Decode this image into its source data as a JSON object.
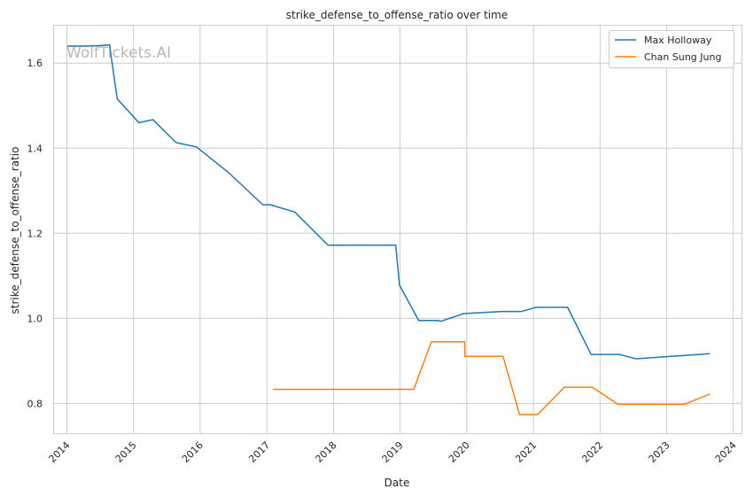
{
  "chart_data": {
    "type": "line",
    "title": "strike_defense_to_offense_ratio over time",
    "xlabel": "Date",
    "ylabel": "strike_defense_to_offense_ratio",
    "watermark": "WolfTickets.AI",
    "xlim": [
      "2013-10-18",
      "2024-02-15"
    ],
    "ylim": [
      0.73,
      1.69
    ],
    "x_ticks": [
      "2014",
      "2015",
      "2016",
      "2017",
      "2018",
      "2019",
      "2020",
      "2021",
      "2022",
      "2023",
      "2024"
    ],
    "y_ticks": [
      "0.8",
      "1.0",
      "1.2",
      "1.4",
      "1.6"
    ],
    "grid": true,
    "legend_position": "top-right",
    "series": [
      {
        "name": "Max Holloway",
        "color": "#1f77b4",
        "points": [
          [
            "2014-01-04",
            1.64
          ],
          [
            "2014-04-16",
            1.64
          ],
          [
            "2014-06-28",
            1.641
          ],
          [
            "2014-08-23",
            1.643
          ],
          [
            "2014-10-04",
            1.516
          ],
          [
            "2015-01-31",
            1.46
          ],
          [
            "2015-04-18",
            1.467
          ],
          [
            "2015-08-23",
            1.413
          ],
          [
            "2015-12-12",
            1.403
          ],
          [
            "2016-06-04",
            1.343
          ],
          [
            "2016-12-10",
            1.267
          ],
          [
            "2017-01-20",
            1.267
          ],
          [
            "2017-06-03",
            1.25
          ],
          [
            "2017-12-02",
            1.172
          ],
          [
            "2018-04-07",
            1.172
          ],
          [
            "2018-07-28",
            1.172
          ],
          [
            "2018-12-08",
            1.172
          ],
          [
            "2018-12-29",
            1.078
          ],
          [
            "2019-04-13",
            0.995
          ],
          [
            "2019-07-27",
            0.995
          ],
          [
            "2019-08-12",
            0.993
          ],
          [
            "2019-12-14",
            1.011
          ],
          [
            "2020-07-12",
            1.016
          ],
          [
            "2020-10-25",
            1.016
          ],
          [
            "2021-01-16",
            1.026
          ],
          [
            "2021-07-07",
            1.026
          ],
          [
            "2021-11-13",
            0.915
          ],
          [
            "2022-04-18",
            0.915
          ],
          [
            "2022-07-16",
            0.905
          ],
          [
            "2023-04-15",
            0.913
          ],
          [
            "2023-08-26",
            0.917
          ]
        ]
      },
      {
        "name": "Chan Sung Jung",
        "color": "#ff7f0e",
        "points": [
          [
            "2017-02-04",
            0.833
          ],
          [
            "2019-03-17",
            0.833
          ],
          [
            "2019-06-22",
            0.945
          ],
          [
            "2019-12-21",
            0.945
          ],
          [
            "2019-12-22",
            0.911
          ],
          [
            "2020-07-18",
            0.911
          ],
          [
            "2020-10-17",
            0.774
          ],
          [
            "2021-01-24",
            0.774
          ],
          [
            "2021-06-19",
            0.838
          ],
          [
            "2021-11-20",
            0.838
          ],
          [
            "2022-04-09",
            0.798
          ],
          [
            "2023-04-08",
            0.798
          ],
          [
            "2023-08-26",
            0.822
          ]
        ]
      }
    ]
  }
}
